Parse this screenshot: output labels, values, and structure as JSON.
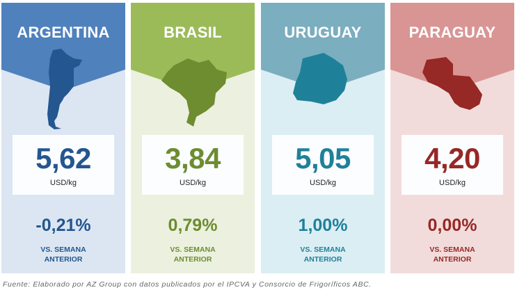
{
  "countries": [
    {
      "name": "ARGENTINA",
      "value": "5,62",
      "unit": "USD/kg",
      "change": "-0,21%",
      "label1": "VS. SEMANA",
      "label2": "ANTERIOR",
      "header_color": "#4f81bd",
      "bg_color": "#dce6f2",
      "dark_color": "#24568f"
    },
    {
      "name": "BRASIL",
      "value": "3,84",
      "unit": "USD/kg",
      "change": "0,79%",
      "label1": "VS. SEMANA",
      "label2": "ANTERIOR",
      "header_color": "#9bbb59",
      "bg_color": "#ebf1de",
      "dark_color": "#6e8c30"
    },
    {
      "name": "URUGUAY",
      "value": "5,05",
      "unit": "USD/kg",
      "change": "1,00%",
      "label1": "VS. SEMANA",
      "label2": "ANTERIOR",
      "header_color": "#7baebf",
      "bg_color": "#dbeef4",
      "dark_color": "#1f8199"
    },
    {
      "name": "PARAGUAY",
      "value": "4,20",
      "unit": "USD/kg",
      "change": "0,00%",
      "label1": "VS. SEMANA",
      "label2": "ANTERIOR",
      "header_color": "#d99594",
      "bg_color": "#f2dcdb",
      "dark_color": "#962826"
    }
  ],
  "source": "Fuente: Elaborado por AZ Group con datos publicados por el IPCVA y Consorcio de Frigoríficos ABC."
}
